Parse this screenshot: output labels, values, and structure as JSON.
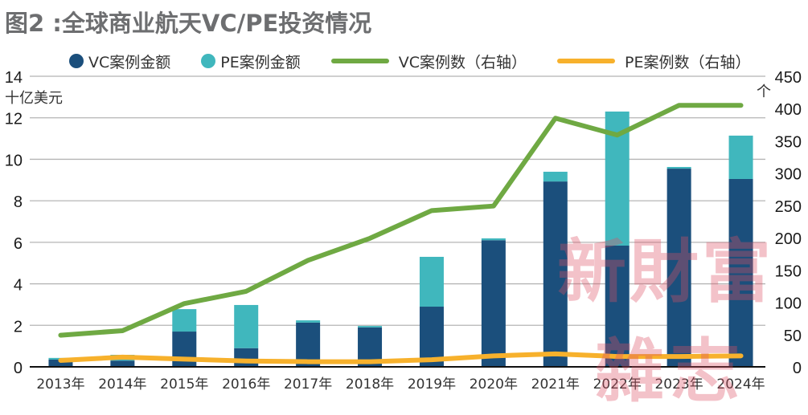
{
  "title": "图2 :全球商业航天VC/PE投资情况",
  "legend": [
    {
      "label": "VC案例金额",
      "type": "dot",
      "color": "#1b4f7c"
    },
    {
      "label": "PE案例金额",
      "type": "dot",
      "color": "#40b7bd"
    },
    {
      "label": "VC案例数（右轴）",
      "type": "line",
      "color": "#6fa943"
    },
    {
      "label": "PE案例数（右轴）",
      "type": "line",
      "color": "#f7b12c"
    }
  ],
  "watermark": {
    "line1": "新財富",
    "line2": "雜志"
  },
  "chart_data": {
    "type": "bar",
    "title": "图2 :全球商业航天VC/PE投资情况",
    "categories": [
      "2013年",
      "2014年",
      "2015年",
      "2016年",
      "2017年",
      "2018年",
      "2019年",
      "2020年",
      "2021年",
      "2022年",
      "2023年",
      "2024年"
    ],
    "ylabel": "十亿美元",
    "y2label": "个",
    "ylim": [
      0,
      14
    ],
    "yticks": [
      0,
      2,
      4,
      6,
      8,
      10,
      12,
      14
    ],
    "y2lim": [
      0,
      450
    ],
    "y2ticks": [
      0,
      50,
      100,
      150,
      200,
      250,
      300,
      350,
      400,
      450
    ],
    "grid": true,
    "legend_position": "top",
    "stacked": true,
    "series": [
      {
        "name": "VC案例金额",
        "type": "bar",
        "axis": "left",
        "color": "#1b4f7c",
        "values": [
          0.35,
          0.3,
          1.7,
          0.9,
          2.13,
          1.9,
          2.9,
          6.1,
          8.93,
          5.84,
          9.55,
          9.05
        ]
      },
      {
        "name": "PE案例金额",
        "type": "bar",
        "axis": "left",
        "color": "#40b7bd",
        "values": [
          0.08,
          0.28,
          1.08,
          2.08,
          0.11,
          0.07,
          2.4,
          0.09,
          0.47,
          6.46,
          0.08,
          2.09
        ]
      },
      {
        "name": "VC案例数（右轴）",
        "type": "line",
        "axis": "right",
        "color": "#6fa943",
        "values": [
          49,
          56,
          98,
          117,
          165,
          199,
          242,
          249,
          385,
          359,
          405,
          405
        ]
      },
      {
        "name": "PE案例数（右轴）",
        "type": "line",
        "axis": "right",
        "color": "#f7b12c",
        "values": [
          10,
          15,
          12,
          9,
          8,
          8,
          11,
          17,
          20,
          16,
          16,
          17
        ]
      }
    ]
  }
}
